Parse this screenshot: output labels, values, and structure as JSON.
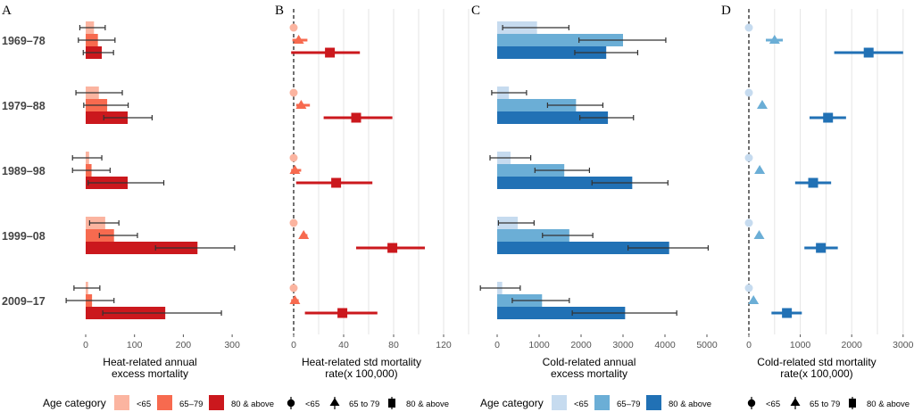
{
  "chart_data": [
    {
      "panel": "A",
      "type": "bar",
      "orientation": "horizontal",
      "categories": [
        "1969–78",
        "1979–88",
        "1989–98",
        "1999–08",
        "2009–17"
      ],
      "xlabel": "Heat-related annual\nexcess mortality",
      "xlim": [
        -35,
        320
      ],
      "xticks": [
        0,
        100,
        200,
        300
      ],
      "grid": false,
      "series": [
        {
          "name": "<65",
          "color": "#FBB4A0",
          "values": [
            17,
            27,
            7,
            40,
            5
          ],
          "ci_low": [
            -12,
            -20,
            -27,
            8,
            -24
          ],
          "ci_high": [
            40,
            75,
            33,
            68,
            29
          ]
        },
        {
          "name": "65–79",
          "color": "#F76A4F",
          "values": [
            25,
            44,
            12,
            58,
            13
          ],
          "ci_low": [
            -15,
            -4,
            -27,
            28,
            -40
          ],
          "ci_high": [
            60,
            87,
            50,
            106,
            58
          ]
        },
        {
          "name": "80 & above",
          "color": "#CB181D",
          "values": [
            33,
            86,
            86,
            229,
            163
          ],
          "ci_low": [
            -5,
            37,
            5,
            143,
            35
          ],
          "ci_high": [
            57,
            136,
            160,
            305,
            278
          ]
        }
      ]
    },
    {
      "panel": "B",
      "type": "scatter",
      "subtype": "point-range",
      "categories": [
        "1969–78",
        "1979–88",
        "1989–98",
        "1999–08",
        "2009–17"
      ],
      "xlabel": "Heat-related std mortality\nrate(x 100,000)",
      "xlim": [
        -5,
        145
      ],
      "xticks": [
        0,
        40,
        80,
        120
      ],
      "gridlines": [
        20,
        40,
        60,
        80,
        100,
        120,
        140
      ],
      "grid": true,
      "reference_line": 0,
      "series": [
        {
          "name": "<65",
          "marker": "circle",
          "color": "#FBB4A0",
          "values": [
            0,
            0,
            0,
            0,
            0
          ],
          "ci_low": [
            0,
            0,
            -1,
            0,
            0
          ],
          "ci_high": [
            0,
            0,
            1,
            0,
            0
          ]
        },
        {
          "name": "65 to 79",
          "marker": "triangle",
          "color": "#F76A4F",
          "values": [
            4,
            6,
            1,
            8,
            1
          ],
          "ci_low": [
            -1,
            2,
            -2,
            6,
            -2
          ],
          "ci_high": [
            11,
            13,
            6,
            11,
            4
          ]
        },
        {
          "name": "80 & above",
          "marker": "square",
          "color": "#CB181D",
          "values": [
            29,
            50,
            34,
            79,
            39
          ],
          "ci_low": [
            -2,
            24,
            2,
            50,
            9
          ],
          "ci_high": [
            53,
            79,
            63,
            105,
            67
          ]
        }
      ]
    },
    {
      "panel": "C",
      "type": "bar",
      "orientation": "horizontal",
      "categories": [
        "1969–78",
        "1979–88",
        "1989–98",
        "1999–08",
        "2009–17"
      ],
      "xlabel": "Cold-related annual\nexcess mortality",
      "xlim": [
        -450,
        5250
      ],
      "xticks": [
        0,
        1000,
        2000,
        3000,
        4000,
        5000
      ],
      "grid": false,
      "series": [
        {
          "name": "<65",
          "color": "#C6DBEF",
          "values": [
            950,
            280,
            320,
            490,
            120
          ],
          "ci_low": [
            130,
            -130,
            -170,
            30,
            -400
          ],
          "ci_high": [
            1710,
            700,
            800,
            880,
            550
          ]
        },
        {
          "name": "65–79",
          "color": "#6BAED6",
          "values": [
            3000,
            1880,
            1600,
            1720,
            1070
          ],
          "ci_low": [
            1950,
            1200,
            900,
            1080,
            360
          ],
          "ci_high": [
            4020,
            2520,
            2200,
            2280,
            1720
          ]
        },
        {
          "name": "80 & above",
          "color": "#2171B5",
          "values": [
            2600,
            2640,
            3220,
            4100,
            3050
          ],
          "ci_low": [
            1850,
            1970,
            2260,
            3120,
            1790
          ],
          "ci_high": [
            3350,
            3250,
            4070,
            5030,
            4280
          ]
        }
      ]
    },
    {
      "panel": "D",
      "type": "scatter",
      "subtype": "point-range",
      "categories": [
        "1969–78",
        "1979–88",
        "1989–98",
        "1999–08",
        "2009–17"
      ],
      "xlabel": "Cold-related std mortality\nrate(x 100,000)",
      "xlim": [
        -50,
        3050
      ],
      "xticks": [
        0,
        1000,
        2000,
        3000
      ],
      "gridlines": [
        500,
        1000,
        1500,
        2000,
        2500,
        3000
      ],
      "grid": true,
      "reference_line": 0,
      "series": [
        {
          "name": "<65",
          "marker": "circle",
          "color": "#C6DBEF",
          "values": [
            0,
            0,
            0,
            0,
            0
          ],
          "ci_low": [
            0,
            0,
            0,
            0,
            0
          ],
          "ci_high": [
            0,
            0,
            0,
            0,
            0
          ]
        },
        {
          "name": "65 to 79",
          "marker": "triangle",
          "color": "#6BAED6",
          "values": [
            500,
            260,
            210,
            200,
            90
          ],
          "ci_low": [
            330,
            220,
            160,
            180,
            70
          ],
          "ci_high": [
            660,
            310,
            260,
            220,
            110
          ]
        },
        {
          "name": "80 & above",
          "marker": "square",
          "color": "#2171B5",
          "values": [
            2330,
            1540,
            1250,
            1400,
            740
          ],
          "ci_low": [
            1660,
            1180,
            900,
            1080,
            440
          ],
          "ci_high": [
            3000,
            1890,
            1600,
            1730,
            1030
          ]
        }
      ]
    }
  ],
  "legends": {
    "heat": {
      "title": "Age category",
      "bar_items": [
        {
          "label": "<65",
          "color": "#FBB4A0"
        },
        {
          "label": "65–79",
          "color": "#F76A4F"
        },
        {
          "label": "80 & above",
          "color": "#CB181D"
        }
      ],
      "marker_items": [
        {
          "label": "<65",
          "marker": "circle"
        },
        {
          "label": "65 to 79",
          "marker": "triangle"
        },
        {
          "label": "80 & above",
          "marker": "square"
        }
      ]
    },
    "cold": {
      "title": "Age category",
      "bar_items": [
        {
          "label": "<65",
          "color": "#C6DBEF"
        },
        {
          "label": "65–79",
          "color": "#6BAED6"
        },
        {
          "label": "80 & above",
          "color": "#2171B5"
        }
      ],
      "marker_items": [
        {
          "label": "<65",
          "marker": "circle"
        },
        {
          "label": "65 to 79",
          "marker": "triangle"
        },
        {
          "label": "80 & above",
          "marker": "square"
        }
      ]
    }
  }
}
